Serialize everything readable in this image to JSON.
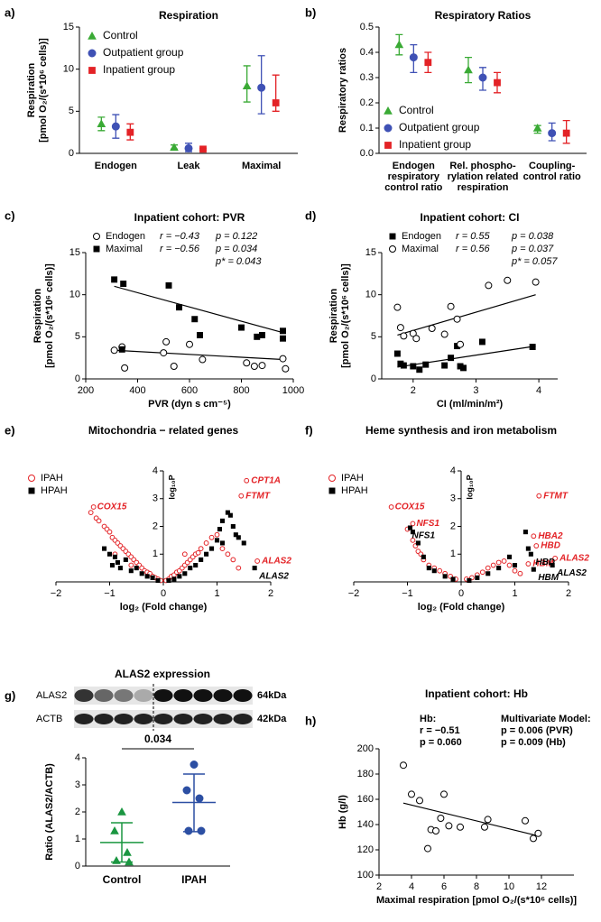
{
  "chart_data": [
    {
      "type": "dot_errorbar",
      "label": "a)",
      "title": "Respiration",
      "ylabel": [
        "Respiration",
        "[pmol O₂/(s*10⁶ cells)]"
      ],
      "categories": [
        "Endogen",
        "Leak",
        "Maximal"
      ],
      "ylim": [
        0,
        15
      ],
      "yticks": [
        0,
        5,
        10,
        15
      ],
      "series": [
        {
          "name": "Control",
          "color": "#3aaa35",
          "marker": "triangle",
          "values": [
            3.5,
            0.7,
            8.0
          ],
          "lower": [
            2.7,
            0.5,
            6.1
          ],
          "upper": [
            4.3,
            1.0,
            10.4
          ]
        },
        {
          "name": "Outpatient group",
          "color": "#3f51b5",
          "marker": "circle",
          "values": [
            3.2,
            0.6,
            7.8
          ],
          "lower": [
            1.8,
            0.2,
            4.7
          ],
          "upper": [
            4.6,
            1.2,
            11.6
          ]
        },
        {
          "name": "Inpatient group",
          "color": "#e32226",
          "marker": "square",
          "values": [
            2.5,
            0.5,
            6.0
          ],
          "lower": [
            1.6,
            0.4,
            5.0
          ],
          "upper": [
            3.5,
            0.6,
            9.3
          ]
        }
      ]
    },
    {
      "type": "dot_errorbar",
      "label": "b)",
      "title": "Respiratory Ratios",
      "ylabel": [
        "Respiratory ratios"
      ],
      "categories": [
        [
          "Endogen",
          "respiratory",
          "control ratio"
        ],
        [
          "Rel. phospho-",
          "rylation related",
          "respiration"
        ],
        [
          "Coupling-",
          "control ratio"
        ]
      ],
      "ylim": [
        0,
        0.5
      ],
      "yticks": [
        {
          "value": 0,
          "label": "0.0"
        },
        0.1,
        0.2,
        0.3,
        0.4,
        0.5
      ],
      "series": [
        {
          "name": "Control",
          "color": "#3aaa35",
          "marker": "triangle",
          "values": [
            0.43,
            0.33,
            0.1
          ],
          "lower": [
            0.39,
            0.28,
            0.08
          ],
          "upper": [
            0.47,
            0.38,
            0.11
          ]
        },
        {
          "name": "Outpatient group",
          "color": "#3f51b5",
          "marker": "circle",
          "values": [
            0.38,
            0.3,
            0.08
          ],
          "lower": [
            0.32,
            0.25,
            0.05
          ],
          "upper": [
            0.43,
            0.34,
            0.12
          ]
        },
        {
          "name": "Inpatient group",
          "color": "#e32226",
          "marker": "square",
          "values": [
            0.36,
            0.28,
            0.08
          ],
          "lower": [
            0.32,
            0.24,
            0.04
          ],
          "upper": [
            0.4,
            0.32,
            0.13
          ]
        }
      ]
    },
    {
      "type": "scatter",
      "label": "c)",
      "title": "Inpatient cohort: PVR",
      "ylabel": [
        "Respiration",
        "[pmol O₂/(s*10⁶ cells)]"
      ],
      "xlabel": "PVR (dyn s cm⁻⁵)",
      "xlim": [
        200,
        1000
      ],
      "xticks": [
        200,
        400,
        600,
        800,
        1000
      ],
      "ylim": [
        0,
        15
      ],
      "yticks": [
        0,
        5,
        10,
        15
      ],
      "annotations": [
        "p* = 0.043"
      ],
      "series": [
        {
          "name": "Endogen",
          "stats": [
            "r = −0.43",
            "p = 0.122"
          ],
          "color": "#000000",
          "marker": "circle",
          "filled": false,
          "x": [
            310,
            340,
            350,
            500,
            510,
            540,
            600,
            650,
            820,
            850,
            880,
            960,
            970
          ],
          "values": [
            3.4,
            3.8,
            1.3,
            3.1,
            4.4,
            1.5,
            4.1,
            2.3,
            1.9,
            1.5,
            1.6,
            2.4,
            1.2
          ],
          "fit": [
            [
              310,
              3.4
            ],
            [
              960,
              2.3
            ]
          ]
        },
        {
          "name": "Maximal",
          "stats": [
            "r = −0.56",
            "p = 0.034"
          ],
          "color": "#000000",
          "marker": "square",
          "filled": true,
          "x": [
            310,
            345,
            340,
            520,
            560,
            620,
            640,
            800,
            860,
            880,
            960,
            960
          ],
          "values": [
            11.8,
            11.3,
            3.5,
            11.1,
            8.5,
            7.1,
            5.2,
            6.1,
            5.0,
            5.2,
            5.7,
            4.8
          ],
          "fit": [
            [
              310,
              11.0
            ],
            [
              960,
              5.5
            ]
          ]
        }
      ]
    },
    {
      "type": "scatter",
      "label": "d)",
      "title": "Inpatient cohort: CI",
      "ylabel": [
        "Respiration",
        "[pmol O₂/(s*10⁶ cells)]"
      ],
      "xlabel": "CI (ml/min/m²)",
      "xlim": [
        1.5,
        4.3
      ],
      "xticks": [
        2,
        3,
        4
      ],
      "ylim": [
        0,
        15
      ],
      "yticks": [
        0,
        5,
        10,
        15
      ],
      "annotations": [
        "p* = 0.057"
      ],
      "series": [
        {
          "name": "Endogen",
          "stats": [
            "r = 0.55",
            "p = 0.038"
          ],
          "color": "#000000",
          "marker": "square",
          "filled": true,
          "x": [
            1.75,
            1.8,
            1.85,
            2.0,
            2.1,
            2.2,
            2.5,
            2.6,
            2.7,
            2.75,
            2.8,
            3.1,
            3.9
          ],
          "values": [
            3.0,
            1.8,
            1.6,
            1.5,
            1.1,
            1.7,
            1.6,
            2.5,
            3.9,
            1.5,
            1.3,
            4.4,
            3.8
          ],
          "fit": [
            [
              1.75,
              1.4
            ],
            [
              3.95,
              3.9
            ]
          ]
        },
        {
          "name": "Maximal",
          "stats": [
            "r = 0.56",
            "p = 0.037"
          ],
          "color": "#000000",
          "marker": "circle",
          "filled": false,
          "x": [
            1.75,
            1.8,
            1.85,
            2.0,
            2.05,
            2.3,
            2.5,
            2.6,
            2.7,
            2.75,
            3.2,
            3.5,
            3.95
          ],
          "values": [
            8.5,
            6.1,
            5.1,
            5.4,
            4.8,
            6.0,
            5.3,
            8.6,
            7.1,
            4.1,
            11.1,
            11.7,
            11.5
          ],
          "fit": [
            [
              1.75,
              5.2
            ],
            [
              3.95,
              10.0
            ]
          ]
        }
      ]
    },
    {
      "type": "volcano",
      "label": "e)",
      "title": "Mitochondria − related genes",
      "xlabel": "log₂ (Fold change)",
      "ylabel": [
        "log₁₀P"
      ],
      "xlim": [
        -2,
        2
      ],
      "xticks": [
        {
          "value": -2,
          "label": "−2"
        },
        {
          "value": -1,
          "label": "−1"
        },
        0,
        1,
        2
      ],
      "ylim": [
        0,
        4
      ],
      "yticks": [
        1,
        2,
        3,
        4
      ],
      "series": [
        {
          "name": "IPAH",
          "color": "#e32226",
          "marker": "circle",
          "filled": false,
          "x": [
            -1.35,
            -1.25,
            -1.2,
            -1.1,
            -1.05,
            -1.0,
            -0.95,
            -0.9,
            -0.85,
            -0.8,
            -0.75,
            -0.7,
            -0.65,
            -0.6,
            -0.55,
            -0.5,
            -0.45,
            -0.4,
            -0.35,
            -0.3,
            -0.25,
            -0.2,
            -0.15,
            -0.1,
            -0.05,
            0.05,
            0.1,
            0.15,
            0.2,
            0.25,
            0.3,
            0.35,
            0.4,
            0.45,
            0.5,
            0.55,
            0.6,
            0.65,
            0.7,
            0.8,
            0.9,
            1.0,
            1.1,
            1.2,
            1.3,
            -0.6,
            0.4,
            -0.9,
            1.4
          ],
          "values": [
            2.5,
            2.3,
            2.2,
            2.0,
            1.9,
            1.8,
            1.6,
            1.5,
            1.4,
            1.3,
            1.2,
            1.1,
            1.0,
            0.9,
            0.8,
            0.7,
            0.6,
            0.5,
            0.4,
            0.35,
            0.3,
            0.2,
            0.15,
            0.1,
            0.05,
            0.05,
            0.1,
            0.2,
            0.25,
            0.35,
            0.4,
            0.5,
            0.6,
            0.7,
            0.8,
            0.9,
            1.0,
            1.05,
            1.2,
            1.4,
            1.6,
            1.7,
            1.2,
            1.0,
            0.8,
            0.6,
            1.0,
            1.0,
            0.5
          ],
          "labels": [
            {
              "text": "CPT1A",
              "x": 1.55,
              "y": 3.65
            },
            {
              "text": "FTMT",
              "x": 1.45,
              "y": 3.1
            },
            {
              "text": "COX15",
              "x": -1.3,
              "y": 2.7
            },
            {
              "text": "ALAS2",
              "x": 1.75,
              "y": 0.75
            }
          ]
        },
        {
          "name": "HPAH",
          "color": "#000000",
          "marker": "square",
          "filled": true,
          "x": [
            -1.1,
            -1.0,
            -0.95,
            -0.9,
            -0.85,
            -0.8,
            -0.7,
            -0.6,
            -0.5,
            -0.4,
            -0.3,
            -0.2,
            -0.1,
            0.1,
            0.2,
            0.3,
            0.4,
            0.5,
            0.6,
            0.7,
            0.8,
            0.9,
            1.0,
            1.05,
            1.1,
            1.2,
            1.25,
            1.3,
            1.35,
            1.4,
            1.5,
            1.1
          ],
          "values": [
            1.2,
            1.0,
            0.6,
            0.9,
            0.7,
            0.5,
            0.8,
            0.4,
            0.5,
            0.3,
            0.2,
            0.15,
            0.05,
            0.05,
            0.1,
            0.2,
            0.3,
            0.5,
            0.6,
            0.8,
            1.0,
            1.2,
            1.5,
            1.9,
            2.2,
            2.5,
            2.4,
            2.0,
            1.7,
            1.6,
            1.4,
            1.4
          ],
          "labels": [
            {
              "text": "ALAS2",
              "x": 1.7,
              "y": 0.5
            }
          ]
        }
      ]
    },
    {
      "type": "volcano",
      "label": "f)",
      "title": "Heme synthesis and iron metabolism",
      "xlabel": "log₂ (Fold change)",
      "ylabel": [
        "log₁₀P"
      ],
      "xlim": [
        -2,
        2
      ],
      "xticks": [
        {
          "value": -2,
          "label": "−2"
        },
        {
          "value": -1,
          "label": "−1"
        },
        0,
        1,
        2
      ],
      "ylim": [
        0,
        4
      ],
      "yticks": [
        1,
        2,
        3,
        4
      ],
      "series": [
        {
          "name": "IPAH",
          "color": "#e32226",
          "marker": "circle",
          "filled": false,
          "x": [
            -0.9,
            -0.85,
            -0.8,
            -0.7,
            -0.6,
            -0.5,
            -0.4,
            -0.3,
            -0.2,
            -0.1,
            0.1,
            0.2,
            0.3,
            0.4,
            0.5,
            0.6,
            0.7,
            0.8,
            0.9,
            1.0,
            1.1,
            -1.0,
            -0.75
          ],
          "values": [
            1.5,
            1.3,
            1.1,
            0.8,
            0.6,
            0.5,
            0.4,
            0.3,
            0.2,
            0.1,
            0.1,
            0.15,
            0.25,
            0.35,
            0.5,
            0.6,
            0.7,
            0.75,
            0.6,
            0.4,
            0.3,
            1.9,
            1.0
          ],
          "labels": [
            {
              "text": "FTMT",
              "x": 1.45,
              "y": 3.1
            },
            {
              "text": "COX15",
              "x": -1.3,
              "y": 2.7
            },
            {
              "text": "NFS1",
              "x": -0.9,
              "y": 2.1
            },
            {
              "text": "HBA2",
              "x": 1.35,
              "y": 1.65
            },
            {
              "text": "HBD",
              "x": 1.4,
              "y": 1.3
            },
            {
              "text": "HBM",
              "x": 1.25,
              "y": 0.65
            },
            {
              "text": "ALAS2",
              "x": 1.75,
              "y": 0.85
            }
          ]
        },
        {
          "name": "HPAH",
          "color": "#000000",
          "marker": "square",
          "filled": true,
          "x": [
            -0.9,
            -0.8,
            -0.7,
            -0.6,
            -0.5,
            -0.3,
            -0.15,
            0.15,
            0.3,
            0.5,
            0.7,
            0.9,
            1.0,
            1.2,
            1.25
          ],
          "values": [
            1.8,
            1.4,
            0.9,
            0.5,
            0.4,
            0.2,
            0.1,
            0.05,
            0.15,
            0.3,
            0.5,
            0.9,
            0.6,
            1.8,
            1.2
          ],
          "labels": [
            {
              "text": "NFS1",
              "x": -0.95,
              "y": 1.95
            },
            {
              "text": "HBD",
              "x": 1.3,
              "y": 1.0
            },
            {
              "text": "HBM",
              "x": 1.35,
              "y": 0.45
            },
            {
              "text": "ALAS2",
              "x": 1.7,
              "y": 0.6
            }
          ]
        }
      ]
    },
    {
      "type": "strip",
      "label": "g)",
      "title": "ALAS2 expression",
      "blot_rows": [
        "ALAS2",
        "ACTB"
      ],
      "blot_sizes": [
        "64kDa",
        "42kDa"
      ],
      "ylabel": [
        "Ratio (ALAS2/ACTB)"
      ],
      "categories": [
        "Control",
        "IPAH"
      ],
      "ylim": [
        0,
        4
      ],
      "yticks": [
        0,
        1,
        2,
        3,
        4
      ],
      "significance": "0.034",
      "groups": [
        {
          "color": "#1a9641",
          "marker": "triangle",
          "values": [
            2.0,
            1.3,
            0.5,
            0.2,
            0.15
          ],
          "mean": 0.87,
          "lower": 0.15,
          "upper": 1.6
        },
        {
          "color": "#2c4fa3",
          "marker": "circle",
          "values": [
            3.75,
            2.8,
            2.5,
            1.3,
            1.3
          ],
          "mean": 2.35,
          "lower": 1.27,
          "upper": 3.4
        }
      ]
    },
    {
      "type": "scatter",
      "label": "h)",
      "title": "Inpatient cohort: Hb",
      "xlabel": "Maximal respiration [pmol O₂/(s*10⁶ cells)]",
      "ylabel": [
        "Hb (g/l)"
      ],
      "xlim": [
        2,
        14
      ],
      "xticks": [
        2,
        4,
        6,
        8,
        10,
        12
      ],
      "ylim": [
        100,
        200
      ],
      "yticks": [
        100,
        120,
        140,
        160,
        180,
        200
      ],
      "notes": [
        "Hb:",
        "r = −0.51",
        "p = 0.060",
        "Multivariate Model:",
        "p = 0.006 (PVR)",
        "p = 0.009 (Hb)"
      ],
      "series": [
        {
          "color": "#000000",
          "marker": "circle",
          "filled": false,
          "x": [
            3.5,
            4.0,
            4.5,
            5.0,
            5.2,
            5.5,
            5.8,
            6.0,
            6.3,
            7.0,
            8.7,
            8.5,
            11.0,
            11.5,
            11.8
          ],
          "values": [
            187,
            164,
            159,
            121,
            136,
            135,
            145,
            164,
            139,
            138,
            144,
            138,
            143,
            129,
            133
          ],
          "fit": [
            [
              3.5,
              157
            ],
            [
              11.8,
              131
            ]
          ]
        }
      ]
    }
  ]
}
